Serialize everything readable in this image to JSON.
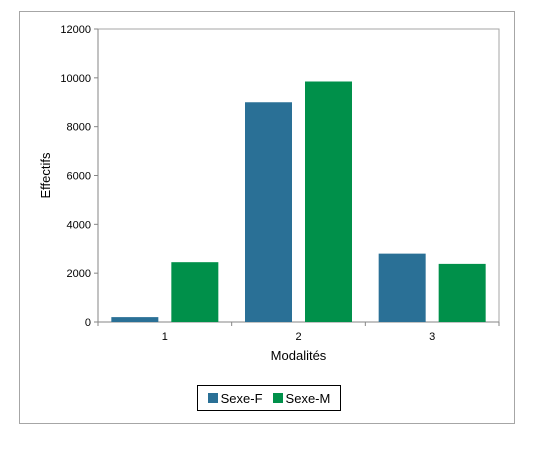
{
  "chart_data": {
    "type": "bar",
    "title": "",
    "xlabel": "Modalités",
    "ylabel": "Effectifs",
    "categories": [
      "1",
      "2",
      "3"
    ],
    "series": [
      {
        "name": "Sexe-F",
        "values": [
          200,
          9000,
          2800
        ],
        "color": "#2a7096"
      },
      {
        "name": "Sexe-M",
        "values": [
          2450,
          9850,
          2380
        ],
        "color": "#00904a"
      }
    ],
    "ylim": [
      0,
      12000
    ],
    "yticks": [
      0,
      2000,
      4000,
      6000,
      8000,
      10000,
      12000
    ],
    "grid": false,
    "legend_position": "bottom"
  }
}
